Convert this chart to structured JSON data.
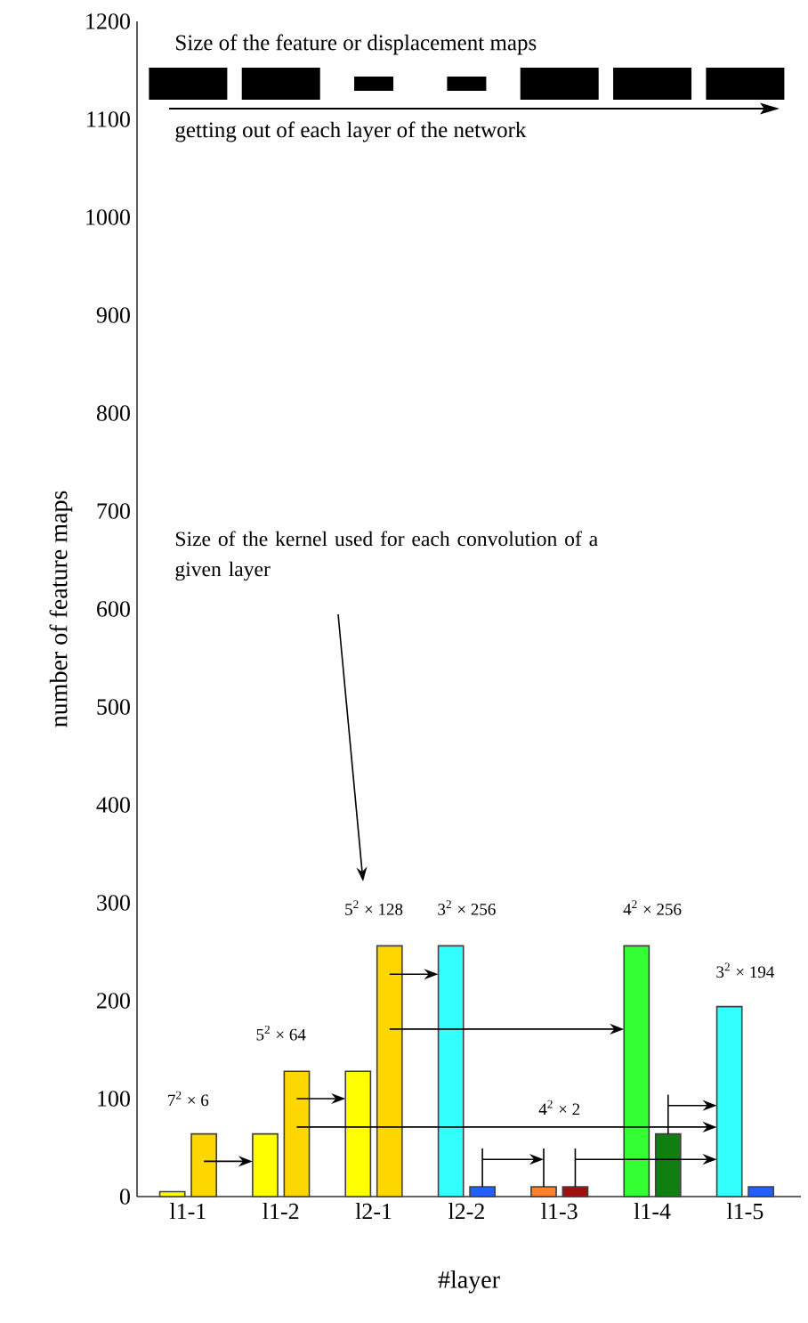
{
  "chart_data": {
    "type": "bar",
    "xlabel": "#layer",
    "ylabel": "number of feature maps",
    "categories": [
      "l1-1",
      "l1-2",
      "l2-1",
      "l2-2",
      "l1-3",
      "l1-4",
      "l1-5"
    ],
    "series": [
      {
        "values": [
          5,
          64,
          128,
          256,
          10,
          256,
          194
        ],
        "colors": [
          "#ffff00",
          "#ffff00",
          "#ffff00",
          "#33ffff",
          "#ff7f2a",
          "#33ff33",
          "#33ffff"
        ]
      },
      {
        "values": [
          64,
          128,
          256,
          10,
          10,
          64,
          10
        ],
        "colors": [
          "#ffd700",
          "#ffd700",
          "#ffd700",
          "#2060ff",
          "#a01010",
          "#107f10",
          "#2060ff"
        ]
      }
    ],
    "ylim": [
      0,
      1200
    ],
    "yticks": [
      0,
      100,
      200,
      300,
      400,
      500,
      600,
      700,
      800,
      900,
      1000,
      1100,
      1200
    ],
    "annotations": [
      "Size of the feature or displacement maps",
      "getting out of each layer of the network",
      "Size of the kernel used for each convolution of a given layer",
      "7$^{2}$ × 6",
      "5$^{2}$ × 64",
      "5$^{2}$ × 128",
      "3$^{2}$ × 256",
      "4$^{2}$ × 2",
      "4$^{2}$ × 256",
      "3$^{2}$ × 194"
    ]
  }
}
